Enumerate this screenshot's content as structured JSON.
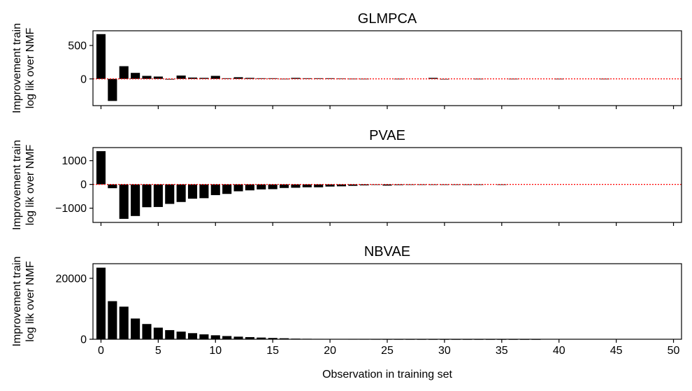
{
  "chart_data": [
    {
      "type": "bar",
      "title": "GLMPCA",
      "ylabel": [
        "Improvement train",
        "log lik over NMF"
      ],
      "ylim": [
        -400,
        720
      ],
      "yticks": [
        500,
        0
      ],
      "yticklabels": [
        "500",
        "0"
      ],
      "zero_line": true,
      "x": [
        0,
        1,
        2,
        3,
        4,
        5,
        6,
        7,
        8,
        9,
        10,
        11,
        12,
        13,
        14,
        15,
        16,
        17,
        18,
        19,
        20,
        21,
        22,
        23,
        24,
        25,
        26,
        27,
        28,
        29,
        30,
        31,
        32,
        33,
        34,
        35,
        36,
        37,
        38,
        39,
        40,
        41,
        42,
        43,
        44,
        45,
        46,
        47,
        48,
        49,
        50
      ],
      "values": [
        670,
        -330,
        190,
        90,
        45,
        35,
        -10,
        50,
        20,
        15,
        45,
        10,
        25,
        15,
        10,
        10,
        2,
        15,
        10,
        10,
        10,
        5,
        3,
        2,
        0,
        0,
        2,
        0,
        0,
        15,
        -2,
        0,
        0,
        2,
        0,
        0,
        2,
        0,
        0,
        0,
        2,
        0,
        0,
        0,
        2,
        0,
        0,
        0,
        0,
        0,
        0
      ]
    },
    {
      "type": "bar",
      "title": "PVAE",
      "ylabel": [
        "Improvement train",
        "log lik over NMF"
      ],
      "ylim": [
        -1600,
        1550
      ],
      "yticks": [
        1000,
        0,
        -1000
      ],
      "yticklabels": [
        "1000",
        "0",
        "−1000"
      ],
      "zero_line": true,
      "x": [
        0,
        1,
        2,
        3,
        4,
        5,
        6,
        7,
        8,
        9,
        10,
        11,
        12,
        13,
        14,
        15,
        16,
        17,
        18,
        19,
        20,
        21,
        22,
        23,
        24,
        25,
        26,
        27,
        28,
        29,
        30,
        31,
        32,
        33,
        34,
        35,
        36,
        37,
        38,
        39,
        40,
        41,
        42,
        43,
        44,
        45,
        46,
        47,
        48,
        49,
        50
      ],
      "values": [
        1400,
        -160,
        -1450,
        -1330,
        -960,
        -950,
        -820,
        -740,
        -600,
        -580,
        -450,
        -400,
        -290,
        -250,
        -210,
        -200,
        -150,
        -140,
        -120,
        -120,
        -90,
        -80,
        -60,
        -40,
        -20,
        -50,
        -30,
        -20,
        -10,
        -20,
        -10,
        -10,
        -20,
        -10,
        0,
        -10,
        0,
        0,
        0,
        0,
        0,
        0,
        0,
        0,
        0,
        0,
        0,
        0,
        0,
        0,
        0
      ]
    },
    {
      "type": "bar",
      "title": "NBVAE",
      "ylabel": [
        "Improvement train",
        "log lik over NMF"
      ],
      "ylim": [
        0,
        24800
      ],
      "yticks": [
        20000,
        0
      ],
      "yticklabels": [
        "20000",
        "0"
      ],
      "zero_line": false,
      "x": [
        0,
        1,
        2,
        3,
        4,
        5,
        6,
        7,
        8,
        9,
        10,
        11,
        12,
        13,
        14,
        15,
        16,
        17,
        18,
        19,
        20,
        21,
        22,
        23,
        24,
        25,
        26,
        27,
        28,
        29,
        30,
        31,
        32,
        33,
        34,
        35,
        36,
        37,
        38,
        39,
        40,
        41,
        42,
        43,
        44,
        45,
        46,
        47,
        48,
        49,
        50
      ],
      "values": [
        23500,
        12500,
        10700,
        6800,
        5000,
        3800,
        3000,
        2500,
        2000,
        1600,
        1300,
        1050,
        850,
        700,
        550,
        420,
        320,
        200,
        150,
        120,
        100,
        80,
        60,
        50,
        40,
        30,
        20,
        15,
        10,
        8,
        6,
        5,
        4,
        3,
        2,
        2,
        1,
        1,
        1,
        0,
        0,
        0,
        0,
        0,
        0,
        0,
        0,
        0,
        0,
        0,
        0
      ]
    }
  ],
  "xaxis": {
    "label": "Observation in training set",
    "ticks": [
      0,
      5,
      10,
      15,
      20,
      25,
      30,
      35,
      40,
      45,
      50
    ],
    "ticklabels": [
      "0",
      "5",
      "10",
      "15",
      "20",
      "25",
      "30",
      "35",
      "40",
      "45",
      "50"
    ],
    "xlim": [
      -0.7,
      50.7
    ]
  }
}
